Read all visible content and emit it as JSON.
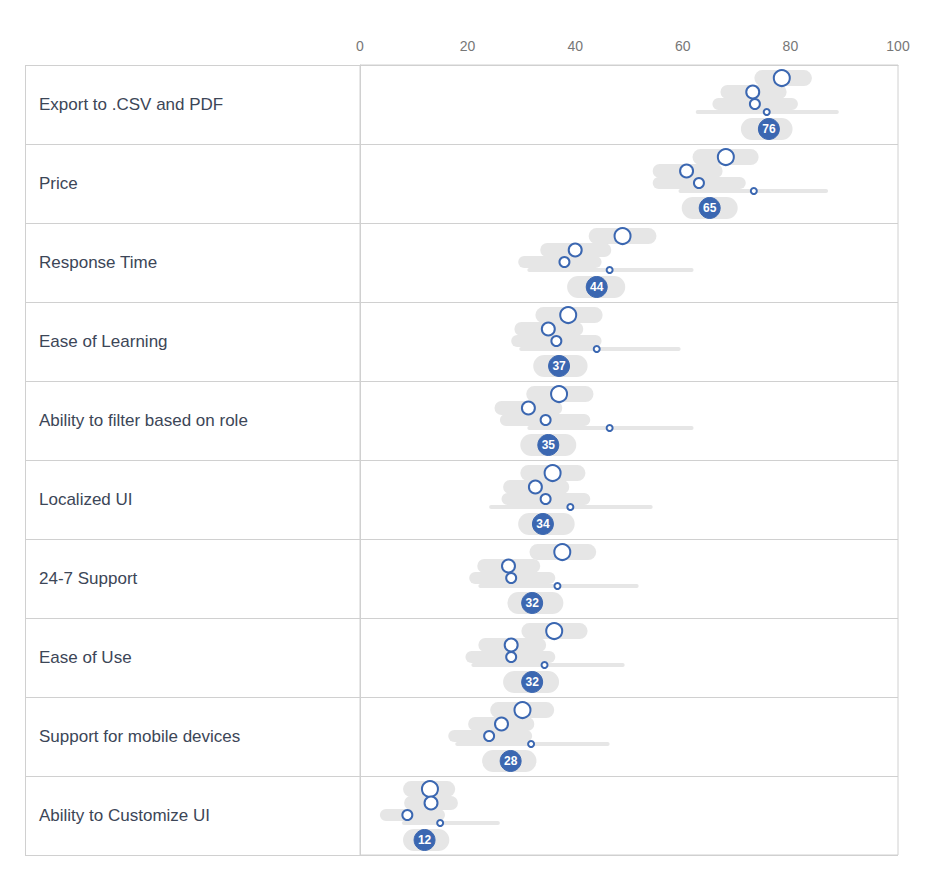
{
  "chart_data": {
    "type": "scatter",
    "orientation": "horizontal",
    "categories": [
      "Export to .CSV and PDF",
      "Price",
      "Response Time",
      "Ease of Learning",
      "Ability to filter based on role",
      "Localized UI",
      "24-7 Support",
      "Ease of Use",
      "Support for mobile devices",
      "Ability to Customize UI"
    ],
    "xlim": [
      0,
      100
    ],
    "xticks": [
      0,
      20,
      40,
      60,
      80,
      100
    ],
    "data_labels": true,
    "series": [
      {
        "color": "#3b67b1",
        "marker": "circle_open",
        "values": [
          78.4,
          68,
          48.8,
          38.7,
          37,
          35.8,
          37.6,
          36.1,
          30.2,
          13
        ],
        "low": [
          73.3,
          61.8,
          42.5,
          32.6,
          30.9,
          29.8,
          31.5,
          30,
          24.2,
          8
        ],
        "high": [
          84,
          74.1,
          55.1,
          45.1,
          43.4,
          41.9,
          43.9,
          42.3,
          36.1,
          17.7
        ]
      },
      {
        "color": "#3b67b1",
        "marker": "circle_open",
        "values": [
          73,
          60.7,
          40,
          35,
          31.3,
          32.6,
          27.6,
          28.1,
          26.3,
          13.2
        ],
        "low": [
          67,
          54.4,
          33.5,
          28.7,
          25,
          26.6,
          21.8,
          22,
          20.1,
          8.2
        ],
        "high": [
          79.3,
          67.4,
          46.7,
          41.5,
          37.6,
          38.9,
          33.5,
          34.6,
          32.4,
          18.2
        ]
      },
      {
        "color": "#3b67b1",
        "marker": "circle_open",
        "values": [
          73.4,
          63,
          38,
          36.5,
          34.5,
          34.5,
          28.1,
          28.1,
          24,
          8.8
        ],
        "low": [
          65.5,
          54.4,
          29.4,
          28.1,
          26,
          26.3,
          20.3,
          19.6,
          16.4,
          3.7
        ],
        "high": [
          81.4,
          71.7,
          44.9,
          44.9,
          42.8,
          42.8,
          36.3,
          36.3,
          32,
          15.8
        ]
      },
      {
        "color": "#3b67b1",
        "marker": "circle_open",
        "values": [
          75.6,
          73.2,
          46.4,
          44,
          46.4,
          39.1,
          36.7,
          34.3,
          31.8,
          14.9
        ],
        "low": [
          62.4,
          59.2,
          31.1,
          29.6,
          31.1,
          24,
          22,
          20.7,
          17.7,
          7.8
        ],
        "high": [
          89,
          87,
          62,
          59.6,
          62,
          54.4,
          51.8,
          49.2,
          46.4,
          26
        ]
      },
      {
        "color": "#3b67b1",
        "marker": "circle",
        "values": [
          76,
          65,
          44,
          37,
          35,
          34,
          32,
          32,
          28,
          12
        ],
        "low": [
          70.8,
          59.8,
          38.5,
          32.2,
          29.8,
          29.4,
          27.4,
          26.6,
          22.7,
          8
        ],
        "high": [
          80.4,
          70.2,
          49.3,
          42.3,
          40.2,
          39.9,
          37.8,
          37,
          32.8,
          16.6
        ]
      }
    ]
  }
}
